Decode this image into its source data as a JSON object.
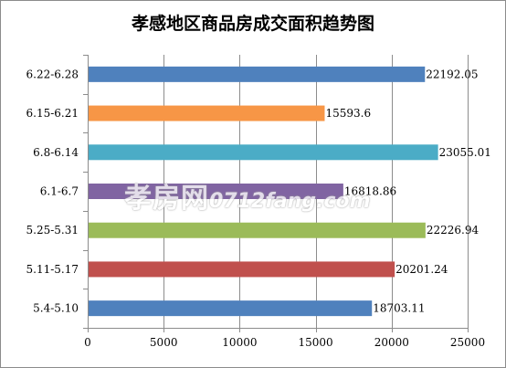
{
  "chart_data": {
    "type": "bar",
    "orientation": "horizontal",
    "title": "孝感地区商品房成交面积趋势图",
    "xlabel": "",
    "ylabel": "",
    "categories": [
      "6.22-6.28",
      "6.15-6.21",
      "6.8-6.14",
      "6.1-6.7",
      "5.25-5.31",
      "5.11-5.17",
      "5.4-5.10"
    ],
    "values": [
      22192.05,
      15593.6,
      23055.01,
      16818.86,
      22226.94,
      20201.24,
      18703.11
    ],
    "value_labels": [
      "22192.05",
      "15593.6",
      "23055.01",
      "16818.86",
      "22226.94",
      "20201.24",
      "18703.11"
    ],
    "bar_colors": [
      "#4f81bd",
      "#f79646",
      "#4bacc6",
      "#8064a2",
      "#9bbb59",
      "#c0504d",
      "#4f81bd"
    ],
    "xlim": [
      0,
      25000
    ],
    "x_ticks": [
      0,
      5000,
      10000,
      15000,
      20000,
      25000
    ],
    "x_tick_labels": [
      "0",
      "5000",
      "10000",
      "15000",
      "20000",
      "25000"
    ],
    "grid": "vertical",
    "legend": "none"
  },
  "watermark": {
    "brand": "孝房网",
    "url": "0712fang.com"
  }
}
